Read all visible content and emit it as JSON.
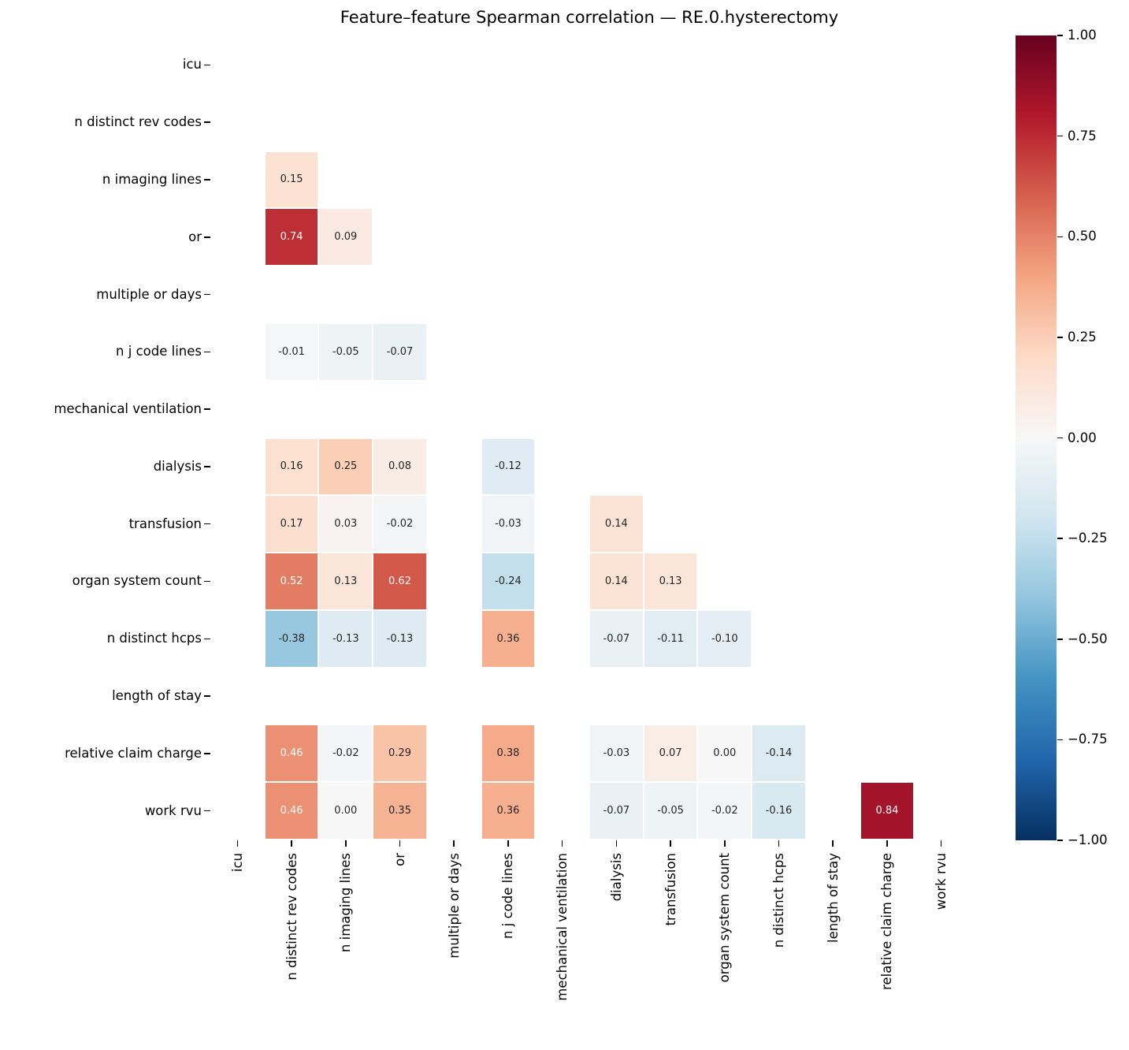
{
  "chart_data": {
    "type": "heatmap",
    "title": "Feature–feature Spearman correlation — RE.0.hysterectomy",
    "features": [
      "icu",
      "n distinct rev codes",
      "n imaging lines",
      "or",
      "multiple or days",
      "n j code lines",
      "mechanical ventilation",
      "dialysis",
      "transfusion",
      "organ system count",
      "n distinct hcps",
      "length of stay",
      "relative claim charge",
      "work rvu"
    ],
    "note": "lower triangle shown; blank rows/columns have no correlation values",
    "matrix": [
      [
        null,
        null,
        null,
        null,
        null,
        null,
        null,
        null,
        null,
        null,
        null,
        null,
        null,
        null
      ],
      [
        null,
        null,
        null,
        null,
        null,
        null,
        null,
        null,
        null,
        null,
        null,
        null,
        null,
        null
      ],
      [
        null,
        0.15,
        null,
        null,
        null,
        null,
        null,
        null,
        null,
        null,
        null,
        null,
        null,
        null
      ],
      [
        null,
        0.74,
        0.09,
        null,
        null,
        null,
        null,
        null,
        null,
        null,
        null,
        null,
        null,
        null
      ],
      [
        null,
        null,
        null,
        null,
        null,
        null,
        null,
        null,
        null,
        null,
        null,
        null,
        null,
        null
      ],
      [
        null,
        -0.01,
        -0.05,
        -0.07,
        null,
        null,
        null,
        null,
        null,
        null,
        null,
        null,
        null,
        null
      ],
      [
        null,
        null,
        null,
        null,
        null,
        null,
        null,
        null,
        null,
        null,
        null,
        null,
        null,
        null
      ],
      [
        null,
        0.16,
        0.25,
        0.08,
        null,
        -0.12,
        null,
        null,
        null,
        null,
        null,
        null,
        null,
        null
      ],
      [
        null,
        0.17,
        0.03,
        -0.02,
        null,
        -0.03,
        null,
        0.14,
        null,
        null,
        null,
        null,
        null,
        null
      ],
      [
        null,
        0.52,
        0.13,
        0.62,
        null,
        -0.24,
        null,
        0.14,
        0.13,
        null,
        null,
        null,
        null,
        null
      ],
      [
        null,
        -0.38,
        -0.13,
        -0.13,
        null,
        0.36,
        null,
        -0.07,
        -0.11,
        -0.1,
        null,
        null,
        null,
        null
      ],
      [
        null,
        null,
        null,
        null,
        null,
        null,
        null,
        null,
        null,
        null,
        null,
        null,
        null,
        null
      ],
      [
        null,
        0.46,
        -0.02,
        0.29,
        null,
        0.38,
        null,
        -0.03,
        0.07,
        0.0,
        -0.14,
        null,
        null,
        null
      ],
      [
        null,
        0.46,
        0.0,
        0.35,
        null,
        0.36,
        null,
        -0.07,
        -0.05,
        -0.02,
        -0.16,
        null,
        0.84,
        null
      ]
    ],
    "colormap": {
      "name": "RdBu_r",
      "vmin": -1,
      "vmax": 1,
      "stops_low_to_high": [
        "#053061",
        "#2166ac",
        "#4393c3",
        "#92c5de",
        "#d1e5f0",
        "#f7f7f7",
        "#fddbc7",
        "#f4a582",
        "#d6604d",
        "#b2182b",
        "#67001f"
      ]
    },
    "colorbar_ticks": [
      "1.00",
      "0.75",
      "0.50",
      "0.25",
      "0.00",
      "−0.25",
      "−0.50",
      "−0.75",
      "−1.00"
    ],
    "annotation_colors": {
      "dark_text": "#262626",
      "light_text": "#ffffff"
    },
    "grid_line_color": "#ffffff",
    "background_color": "#ffffff"
  }
}
